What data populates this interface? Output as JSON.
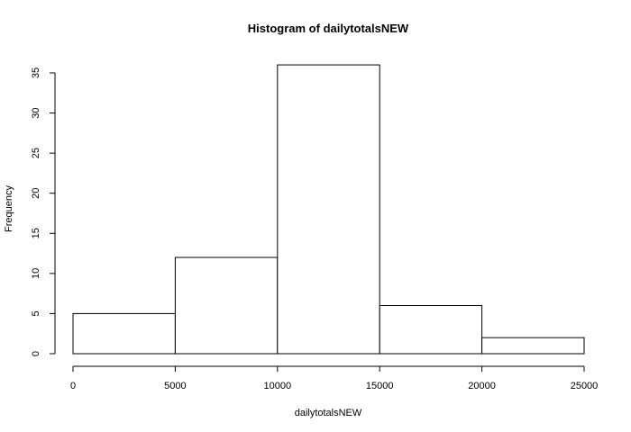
{
  "chart_data": {
    "type": "bar",
    "title": "Histogram of dailytotalsNEW",
    "xlabel": "dailytotalsNEW",
    "ylabel": "Frequency",
    "bins": [
      {
        "start": 0,
        "end": 5000,
        "count": 5
      },
      {
        "start": 5000,
        "end": 10000,
        "count": 12
      },
      {
        "start": 10000,
        "end": 15000,
        "count": 36
      },
      {
        "start": 15000,
        "end": 20000,
        "count": 6
      },
      {
        "start": 20000,
        "end": 25000,
        "count": 2
      }
    ],
    "x_ticks": [
      "0",
      "5000",
      "10000",
      "15000",
      "20000",
      "25000"
    ],
    "y_ticks": [
      "0",
      "5",
      "10",
      "15",
      "20",
      "25",
      "30",
      "35"
    ],
    "xlim": [
      0,
      25000
    ],
    "ylim": [
      0,
      35
    ],
    "grid": false,
    "bar_fill": "#ffffff",
    "bar_stroke": "#000000"
  }
}
